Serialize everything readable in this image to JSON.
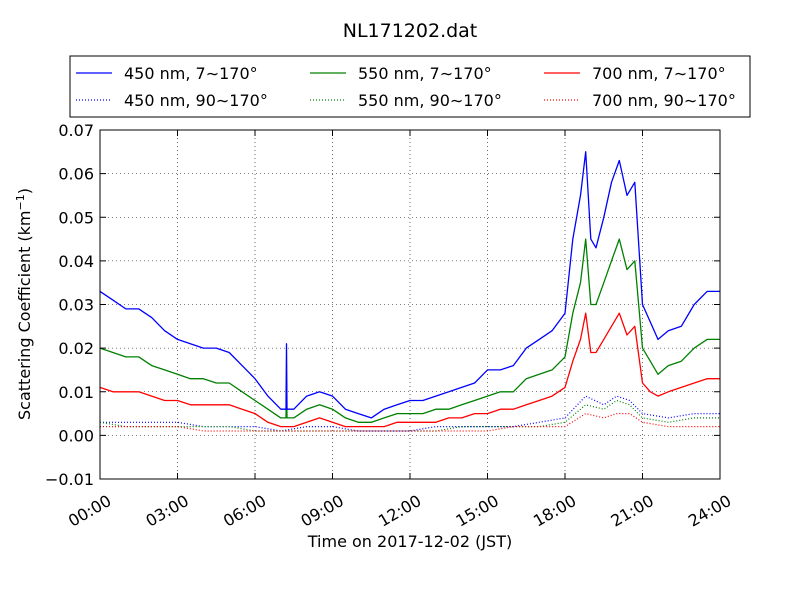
{
  "chart_data": {
    "type": "line",
    "title": "NL171202.dat",
    "xlabel": "Time on 2017-12-02 (JST)",
    "ylabel_main": "Scattering Coefficient (km",
    "ylabel_sup": "−1",
    "ylabel_close": ")",
    "xlim": [
      0,
      24
    ],
    "ylim": [
      -0.01,
      0.07
    ],
    "grid": true,
    "legend_position": "top",
    "x_ticks": [
      {
        "value": 0,
        "label": "00:00"
      },
      {
        "value": 3,
        "label": "03:00"
      },
      {
        "value": 6,
        "label": "06:00"
      },
      {
        "value": 9,
        "label": "09:00"
      },
      {
        "value": 12,
        "label": "12:00"
      },
      {
        "value": 15,
        "label": "15:00"
      },
      {
        "value": 18,
        "label": "18:00"
      },
      {
        "value": 21,
        "label": "21:00"
      },
      {
        "value": 24,
        "label": "24:00"
      }
    ],
    "y_ticks": [
      {
        "value": -0.01,
        "label": "−0.01"
      },
      {
        "value": 0.0,
        "label": "0.00"
      },
      {
        "value": 0.01,
        "label": "0.01"
      },
      {
        "value": 0.02,
        "label": "0.02"
      },
      {
        "value": 0.03,
        "label": "0.03"
      },
      {
        "value": 0.04,
        "label": "0.04"
      },
      {
        "value": 0.05,
        "label": "0.05"
      },
      {
        "value": 0.06,
        "label": "0.06"
      },
      {
        "value": 0.07,
        "label": "0.07"
      }
    ],
    "series": [
      {
        "name": "450 nm, 7∼170°",
        "color": "#0000ff",
        "style": "solid",
        "x": [
          0,
          0.5,
          1,
          1.5,
          2,
          2.5,
          3,
          3.5,
          4,
          4.5,
          5,
          5.5,
          6,
          6.5,
          7,
          7.2,
          7.22,
          7.24,
          7.3,
          7.5,
          8,
          8.5,
          9,
          9.5,
          10,
          10.5,
          11,
          11.5,
          12,
          12.5,
          13,
          13.5,
          14,
          14.5,
          15,
          15.5,
          16,
          16.5,
          17,
          17.5,
          18,
          18.3,
          18.6,
          18.8,
          19,
          19.2,
          19.5,
          19.8,
          20.1,
          20.4,
          20.7,
          21,
          21.3,
          21.6,
          22,
          22.5,
          23,
          23.5,
          24
        ],
        "y": [
          0.033,
          0.031,
          0.029,
          0.029,
          0.027,
          0.024,
          0.022,
          0.021,
          0.02,
          0.02,
          0.019,
          0.016,
          0.013,
          0.009,
          0.006,
          0.006,
          0.021,
          0.006,
          0.006,
          0.006,
          0.009,
          0.01,
          0.009,
          0.006,
          0.005,
          0.004,
          0.006,
          0.007,
          0.008,
          0.008,
          0.009,
          0.01,
          0.011,
          0.012,
          0.015,
          0.015,
          0.016,
          0.02,
          0.022,
          0.024,
          0.028,
          0.045,
          0.055,
          0.065,
          0.045,
          0.043,
          0.05,
          0.058,
          0.063,
          0.055,
          0.058,
          0.03,
          0.026,
          0.022,
          0.024,
          0.025,
          0.03,
          0.033,
          0.033
        ]
      },
      {
        "name": "550 nm, 7∼170°",
        "color": "#008000",
        "style": "solid",
        "x": [
          0,
          0.5,
          1,
          1.5,
          2,
          2.5,
          3,
          3.5,
          4,
          4.5,
          5,
          5.5,
          6,
          6.5,
          7,
          7.2,
          7.22,
          7.24,
          7.3,
          7.5,
          8,
          8.5,
          9,
          9.5,
          10,
          10.5,
          11,
          11.5,
          12,
          12.5,
          13,
          13.5,
          14,
          14.5,
          15,
          15.5,
          16,
          16.5,
          17,
          17.5,
          18,
          18.3,
          18.6,
          18.8,
          19,
          19.2,
          19.5,
          19.8,
          20.1,
          20.4,
          20.7,
          21,
          21.3,
          21.6,
          22,
          22.5,
          23,
          23.5,
          24
        ],
        "y": [
          0.02,
          0.019,
          0.018,
          0.018,
          0.016,
          0.015,
          0.014,
          0.013,
          0.013,
          0.012,
          0.012,
          0.01,
          0.008,
          0.006,
          0.004,
          0.004,
          0.013,
          0.004,
          0.004,
          0.004,
          0.006,
          0.007,
          0.006,
          0.004,
          0.003,
          0.003,
          0.004,
          0.005,
          0.005,
          0.005,
          0.006,
          0.006,
          0.007,
          0.008,
          0.009,
          0.01,
          0.01,
          0.013,
          0.014,
          0.015,
          0.018,
          0.028,
          0.035,
          0.045,
          0.03,
          0.03,
          0.035,
          0.04,
          0.045,
          0.038,
          0.04,
          0.02,
          0.017,
          0.014,
          0.016,
          0.017,
          0.02,
          0.022,
          0.022
        ]
      },
      {
        "name": "700 nm, 7∼170°",
        "color": "#ff0000",
        "style": "solid",
        "x": [
          0,
          0.5,
          1,
          1.5,
          2,
          2.5,
          3,
          3.5,
          4,
          4.5,
          5,
          5.5,
          6,
          6.5,
          7,
          7.5,
          8,
          8.5,
          9,
          9.5,
          10,
          10.5,
          11,
          11.5,
          12,
          12.5,
          13,
          13.5,
          14,
          14.5,
          15,
          15.5,
          16,
          16.5,
          17,
          17.5,
          18,
          18.3,
          18.6,
          18.8,
          19,
          19.2,
          19.5,
          19.8,
          20.1,
          20.4,
          20.7,
          21,
          21.3,
          21.6,
          22,
          22.5,
          23,
          23.5,
          24
        ],
        "y": [
          0.011,
          0.01,
          0.01,
          0.01,
          0.009,
          0.008,
          0.008,
          0.007,
          0.007,
          0.007,
          0.007,
          0.006,
          0.005,
          0.003,
          0.002,
          0.002,
          0.003,
          0.004,
          0.003,
          0.002,
          0.002,
          0.002,
          0.002,
          0.003,
          0.003,
          0.003,
          0.003,
          0.004,
          0.004,
          0.005,
          0.005,
          0.006,
          0.006,
          0.007,
          0.008,
          0.009,
          0.011,
          0.017,
          0.022,
          0.028,
          0.019,
          0.019,
          0.022,
          0.025,
          0.028,
          0.023,
          0.025,
          0.012,
          0.01,
          0.009,
          0.01,
          0.011,
          0.012,
          0.013,
          0.013
        ]
      },
      {
        "name": "450 nm, 90∼170°",
        "color": "#0000ff",
        "style": "dotted",
        "x": [
          0,
          1,
          2,
          3,
          4,
          5,
          6,
          7,
          8,
          9,
          10,
          11,
          12,
          13,
          14,
          15,
          16,
          17,
          18,
          18.8,
          19.5,
          20,
          20.5,
          21,
          22,
          23,
          24
        ],
        "y": [
          0.003,
          0.003,
          0.003,
          0.003,
          0.002,
          0.002,
          0.002,
          0.001,
          0.002,
          0.002,
          0.001,
          0.001,
          0.001,
          0.002,
          0.002,
          0.002,
          0.002,
          0.003,
          0.004,
          0.009,
          0.007,
          0.009,
          0.008,
          0.005,
          0.004,
          0.005,
          0.005
        ]
      },
      {
        "name": "550 nm, 90∼170°",
        "color": "#008000",
        "style": "dotted",
        "x": [
          0,
          1,
          2,
          3,
          4,
          5,
          6,
          7,
          8,
          9,
          10,
          11,
          12,
          13,
          14,
          15,
          16,
          17,
          18,
          18.8,
          19.5,
          20,
          20.5,
          21,
          22,
          23,
          24
        ],
        "y": [
          0.003,
          0.002,
          0.002,
          0.002,
          0.002,
          0.002,
          0.001,
          0.001,
          0.001,
          0.001,
          0.001,
          0.001,
          0.001,
          0.001,
          0.002,
          0.002,
          0.002,
          0.002,
          0.003,
          0.007,
          0.006,
          0.008,
          0.007,
          0.004,
          0.003,
          0.004,
          0.004
        ]
      },
      {
        "name": "700 nm, 90∼170°",
        "color": "#ff0000",
        "style": "dotted",
        "x": [
          0,
          1,
          2,
          3,
          4,
          5,
          6,
          7,
          8,
          9,
          10,
          11,
          12,
          13,
          14,
          15,
          16,
          17,
          18,
          18.8,
          19.5,
          20,
          20.5,
          21,
          22,
          23,
          24
        ],
        "y": [
          0.002,
          0.002,
          0.002,
          0.002,
          0.001,
          0.001,
          0.001,
          0.001,
          0.001,
          0.001,
          0.001,
          0.001,
          0.001,
          0.001,
          0.001,
          0.001,
          0.002,
          0.002,
          0.002,
          0.005,
          0.004,
          0.005,
          0.005,
          0.003,
          0.002,
          0.002,
          0.002
        ]
      }
    ]
  }
}
